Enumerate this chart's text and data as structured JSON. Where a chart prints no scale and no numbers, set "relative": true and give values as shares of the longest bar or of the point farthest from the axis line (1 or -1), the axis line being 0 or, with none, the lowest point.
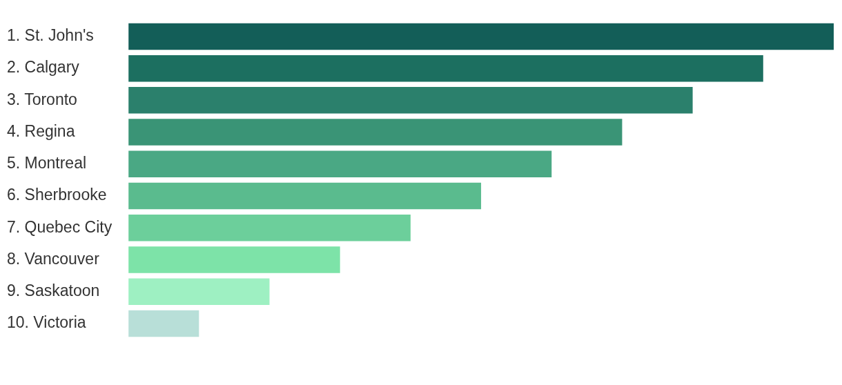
{
  "chart_data": {
    "type": "bar",
    "orientation": "horizontal",
    "relative": true,
    "categories": [
      "1. St. John's",
      "2. Calgary",
      "3. Toronto",
      "4. Regina",
      "5. Montreal",
      "6. Sherbrooke",
      "7. Quebec City",
      "8. Vancouver",
      "9. Saskatoon",
      "10. Victoria"
    ],
    "values": [
      1,
      0.9,
      0.8,
      0.7,
      0.6,
      0.5,
      0.4,
      0.3,
      0.2,
      0.1
    ],
    "colors": [
      "#135e58",
      "#1c6f60",
      "#2b806c",
      "#3a9476",
      "#4aa884",
      "#5abb8e",
      "#6ccf9b",
      "#7de3a8",
      "#9ef0c2",
      "#b8dfd8"
    ],
    "legend": false
  }
}
